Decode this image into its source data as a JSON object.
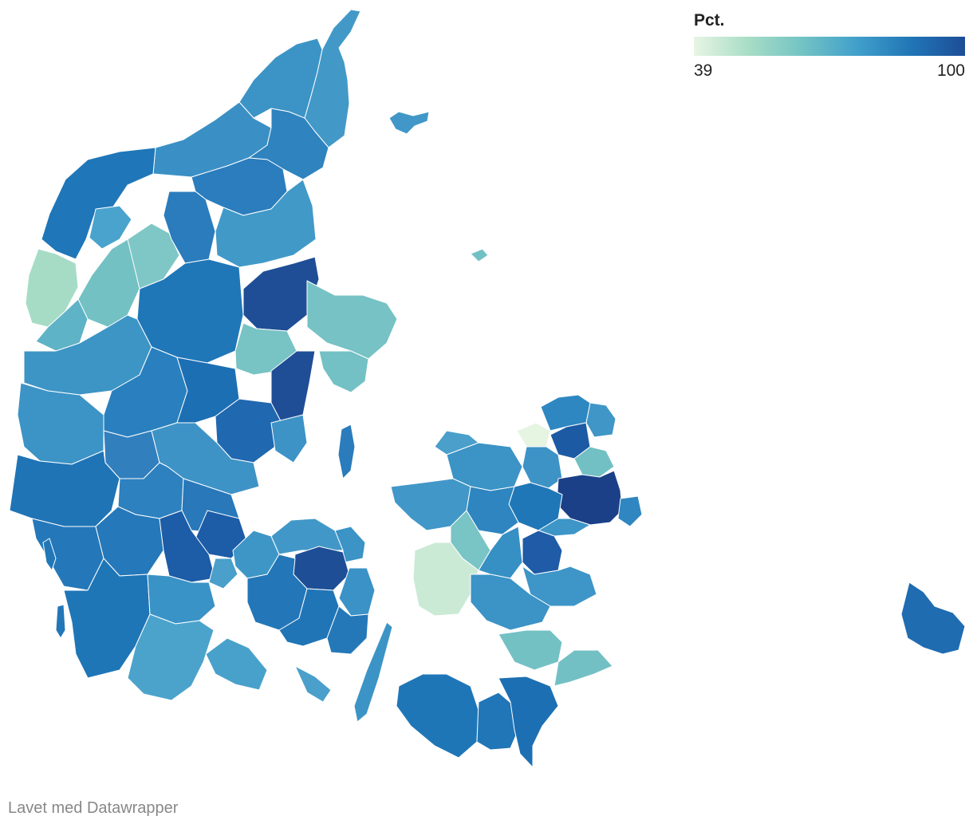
{
  "legend": {
    "title": "Pct.",
    "min_label": "39",
    "max_label": "100",
    "min_value": 39,
    "max_value": 100,
    "colors": [
      "#e8f5e4",
      "#a8ddc6",
      "#73c3c4",
      "#41a0cb",
      "#2176b6",
      "#1d4d97"
    ]
  },
  "credit": "Lavet med Datawrapper"
}
